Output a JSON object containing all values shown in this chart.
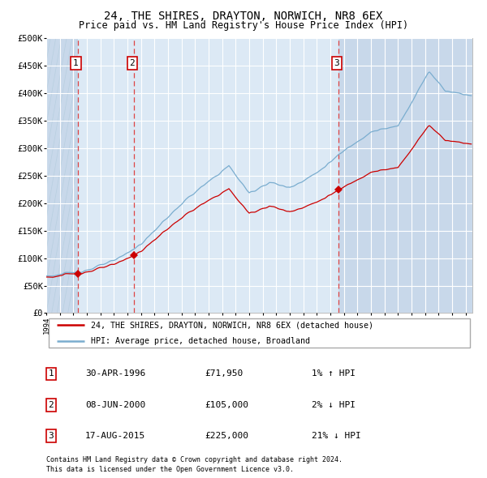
{
  "title": "24, THE SHIRES, DRAYTON, NORWICH, NR8 6EX",
  "subtitle": "Price paid vs. HM Land Registry's House Price Index (HPI)",
  "sale_prices": [
    71950,
    105000,
    225000
  ],
  "sale_labels": [
    "1",
    "2",
    "3"
  ],
  "hpi_label": "HPI: Average price, detached house, Broadland",
  "property_label": "24, THE SHIRES, DRAYTON, NORWICH, NR8 6EX (detached house)",
  "table_rows": [
    {
      "num": "1",
      "date": "30-APR-1996",
      "price": "£71,950",
      "hpi": "1% ↑ HPI"
    },
    {
      "num": "2",
      "date": "08-JUN-2000",
      "price": "£105,000",
      "hpi": "2% ↓ HPI"
    },
    {
      "num": "3",
      "date": "17-AUG-2015",
      "price": "£225,000",
      "hpi": "21% ↓ HPI"
    }
  ],
  "footnote1": "Contains HM Land Registry data © Crown copyright and database right 2024.",
  "footnote2": "This data is licensed under the Open Government Licence v3.0.",
  "xmin": 1994.0,
  "xmax": 2025.5,
  "ymin": 0,
  "ymax": 500000,
  "yticks": [
    0,
    50000,
    100000,
    150000,
    200000,
    250000,
    300000,
    350000,
    400000,
    450000,
    500000
  ],
  "ylabels": [
    "£0",
    "£50K",
    "£100K",
    "£150K",
    "£200K",
    "£250K",
    "£300K",
    "£350K",
    "£400K",
    "£450K",
    "£500K"
  ],
  "bg_color": "#dce9f5",
  "hatch_color": "#c8d8ea",
  "grid_color": "#ffffff",
  "red_color": "#cc0000",
  "blue_color": "#7aadcf",
  "dashed_color": "#dd4444",
  "sale_times": [
    1996.333,
    2000.5,
    2015.625
  ]
}
